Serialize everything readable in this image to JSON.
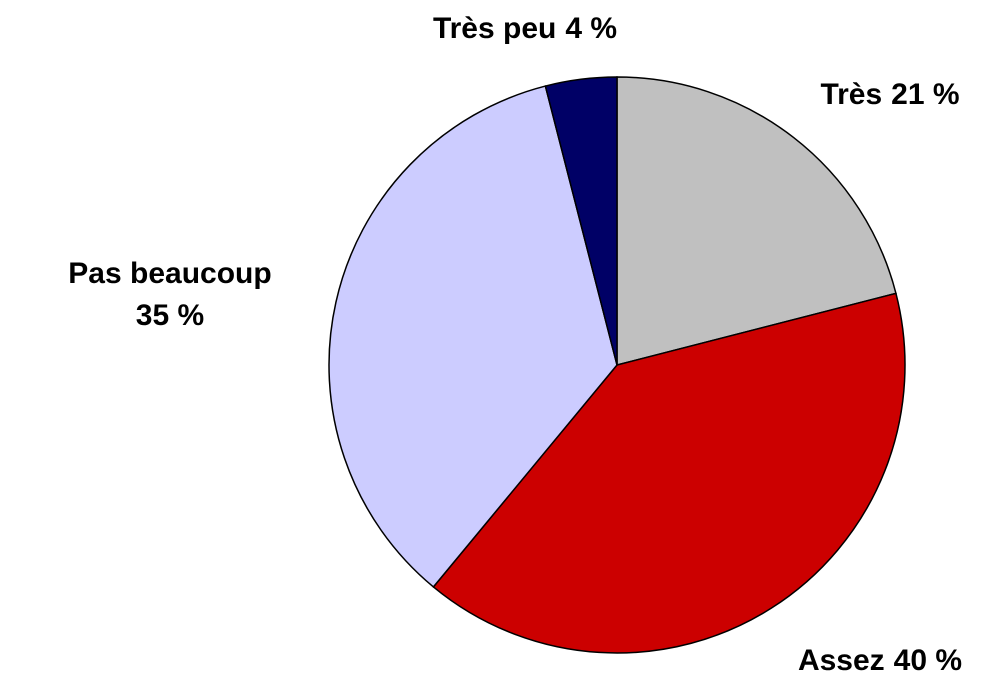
{
  "chart_data": {
    "type": "pie",
    "categories": [
      "Très",
      "Assez",
      "Pas beaucoup",
      "Très peu"
    ],
    "values": [
      21,
      40,
      35,
      4
    ],
    "value_labels": [
      "21 %",
      "40 %",
      "35 %",
      "4 %"
    ],
    "colors": [
      "#c0c0c0",
      "#cc0000",
      "#ccccff",
      "#000066"
    ]
  }
}
